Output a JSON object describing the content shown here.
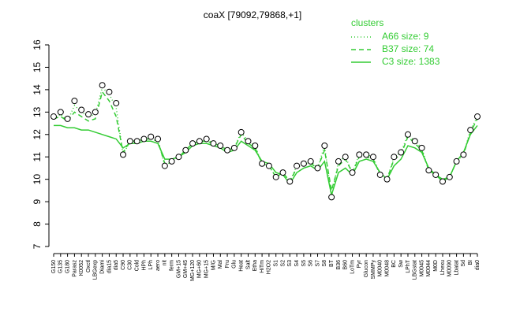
{
  "chart_data": {
    "type": "line",
    "title": "coaX [79092,79868,+1]",
    "legend_title": "clusters",
    "legend_color": "#33cc33",
    "categories": [
      "G150",
      "G135",
      "G180",
      "Parasz",
      "K0052",
      "Oxctl",
      "LBGexp",
      "Diami",
      "dia15",
      "dia5",
      "C90",
      "C30",
      "Cold",
      "HPh",
      "LPh",
      "aero",
      "nit",
      "ferm",
      "GM+15",
      "GM+45",
      "MG+120",
      "MG+60",
      "MG+15",
      "M/G",
      "Mal",
      "Fru",
      "Glu",
      "Heat",
      "Salt",
      "Etha",
      "HiTm",
      "H2O2",
      "S1",
      "S2",
      "S3",
      "S4",
      "S5",
      "S6",
      "S7",
      "S8",
      "BT",
      "B36",
      "B60",
      "LoTm",
      "Pyr",
      "Glucon",
      "SMMPy",
      "M0040",
      "M0048",
      "BC",
      "Sw",
      "LPhT",
      "LBGstat",
      "M0045",
      "M0044",
      "M0D",
      "Lhexu",
      "M0090",
      "Lbatat",
      "Sd",
      "BI",
      "dia0"
    ],
    "points": {
      "color": "#000000",
      "values": [
        12.8,
        13.0,
        12.7,
        13.5,
        13.1,
        12.9,
        13.0,
        14.2,
        13.9,
        13.4,
        11.1,
        11.7,
        11.7,
        11.8,
        11.9,
        11.8,
        10.6,
        10.8,
        11.0,
        11.3,
        11.6,
        11.7,
        11.8,
        11.6,
        11.5,
        11.3,
        11.4,
        12.1,
        11.7,
        11.5,
        10.7,
        10.6,
        10.1,
        10.3,
        9.9,
        10.6,
        10.7,
        10.8,
        10.5,
        11.5,
        9.2,
        10.8,
        11.0,
        10.3,
        11.1,
        11.1,
        11.0,
        10.2,
        10.0,
        11.0,
        11.2,
        12.0,
        11.7,
        11.4,
        10.4,
        10.2,
        9.9,
        10.1,
        10.8,
        11.1,
        12.2,
        12.8
      ]
    },
    "series": [
      {
        "name": "A66 size: 9",
        "color": "#33cc33",
        "dash": "dotted",
        "values": [
          12.7,
          12.9,
          12.6,
          13.3,
          13.0,
          12.8,
          12.9,
          14.1,
          13.8,
          13.2,
          11.1,
          11.7,
          11.7,
          11.8,
          11.9,
          11.8,
          10.6,
          10.8,
          11.0,
          11.3,
          11.6,
          11.7,
          11.8,
          11.6,
          11.5,
          11.3,
          11.4,
          12.1,
          11.7,
          11.5,
          10.7,
          10.6,
          10.1,
          10.3,
          9.9,
          10.6,
          10.7,
          10.8,
          10.5,
          11.5,
          9.2,
          10.8,
          11.0,
          10.3,
          11.1,
          11.1,
          11.0,
          10.2,
          10.0,
          11.0,
          11.2,
          12.0,
          11.7,
          11.4,
          10.4,
          10.2,
          9.9,
          10.1,
          10.8,
          11.1,
          12.2,
          12.8
        ]
      },
      {
        "name": "B37 size: 74",
        "color": "#33cc33",
        "dash": "dashed",
        "values": [
          12.7,
          12.8,
          12.6,
          13.0,
          12.8,
          12.6,
          12.7,
          13.9,
          13.5,
          12.8,
          11.2,
          11.7,
          11.7,
          11.8,
          11.8,
          11.7,
          10.7,
          10.8,
          11.0,
          11.3,
          11.6,
          11.7,
          11.7,
          11.6,
          11.5,
          11.3,
          11.4,
          12.0,
          11.6,
          11.4,
          10.7,
          10.6,
          10.1,
          10.3,
          9.9,
          10.5,
          10.7,
          10.7,
          10.5,
          11.3,
          9.5,
          10.6,
          10.9,
          10.3,
          11.0,
          11.0,
          10.9,
          10.2,
          10.0,
          10.9,
          11.1,
          11.9,
          11.6,
          11.3,
          10.4,
          10.2,
          9.9,
          10.1,
          10.8,
          11.1,
          12.1,
          12.7
        ]
      },
      {
        "name": "C3 size: 1383",
        "color": "#33cc33",
        "dash": "solid",
        "values": [
          12.4,
          12.4,
          12.3,
          12.3,
          12.2,
          12.2,
          12.1,
          12.0,
          11.9,
          11.8,
          11.4,
          11.6,
          11.6,
          11.7,
          11.7,
          11.6,
          10.9,
          10.9,
          11.0,
          11.2,
          11.5,
          11.6,
          11.6,
          11.5,
          11.4,
          11.2,
          11.3,
          11.7,
          11.5,
          11.3,
          10.8,
          10.7,
          10.3,
          10.2,
          9.8,
          10.3,
          10.5,
          10.6,
          10.4,
          10.8,
          9.3,
          10.3,
          10.5,
          10.2,
          10.8,
          10.9,
          10.8,
          10.3,
          10.0,
          10.6,
          10.9,
          11.5,
          11.4,
          11.2,
          10.5,
          10.2,
          10.0,
          10.1,
          10.8,
          11.2,
          12.0,
          12.4
        ]
      }
    ],
    "ylim": [
      7,
      16
    ],
    "yticks": [
      7,
      8,
      9,
      10,
      11,
      12,
      13,
      14,
      15,
      16
    ]
  }
}
